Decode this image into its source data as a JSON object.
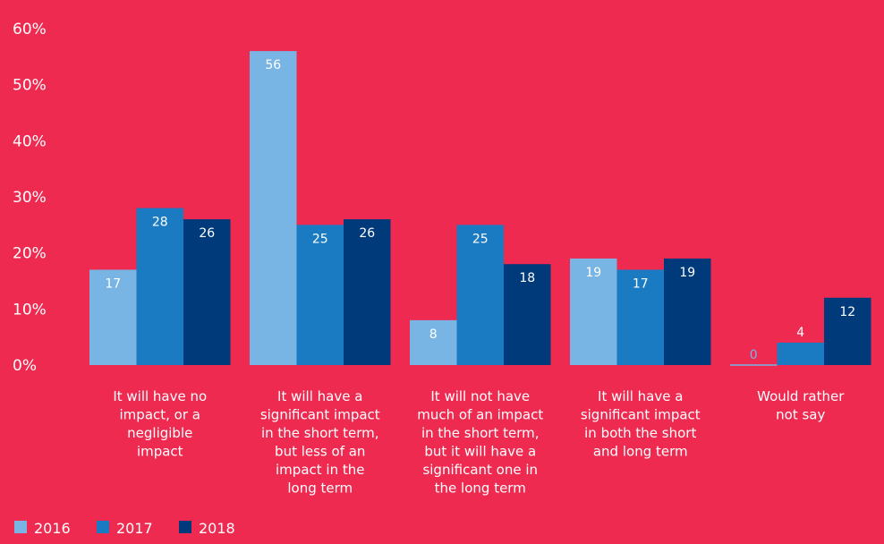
{
  "colors": {
    "background": "#ee2a50",
    "text": "#ffffff",
    "series_2016": "#78b4e4",
    "series_2017": "#1b7bc2",
    "series_2018": "#003a7a"
  },
  "chart_data": {
    "type": "bar",
    "categories": [
      [
        "It will have no",
        "impact, or a",
        "negligible",
        "impact"
      ],
      [
        "It will have a",
        "significant impact",
        "in the short term,",
        "but less of an",
        "impact in the",
        "long term"
      ],
      [
        "It will not have",
        "much of an impact",
        "in the short term,",
        "but it will have a",
        "significant one in",
        "the long term"
      ],
      [
        "It will have a",
        "significant impact",
        "in both the short",
        "and long term"
      ],
      [
        "Would rather",
        "not say"
      ]
    ],
    "series": [
      {
        "name": "2016",
        "values": [
          17,
          56,
          8,
          19,
          0
        ]
      },
      {
        "name": "2017",
        "values": [
          28,
          25,
          25,
          17,
          4
        ]
      },
      {
        "name": "2018",
        "values": [
          26,
          26,
          18,
          19,
          12
        ]
      }
    ],
    "ylim": [
      0,
      60
    ],
    "yticks": [
      "0%",
      "10%",
      "20%",
      "30%",
      "40%",
      "50%",
      "60%"
    ],
    "grid": false,
    "legend_position": "bottom-left"
  }
}
